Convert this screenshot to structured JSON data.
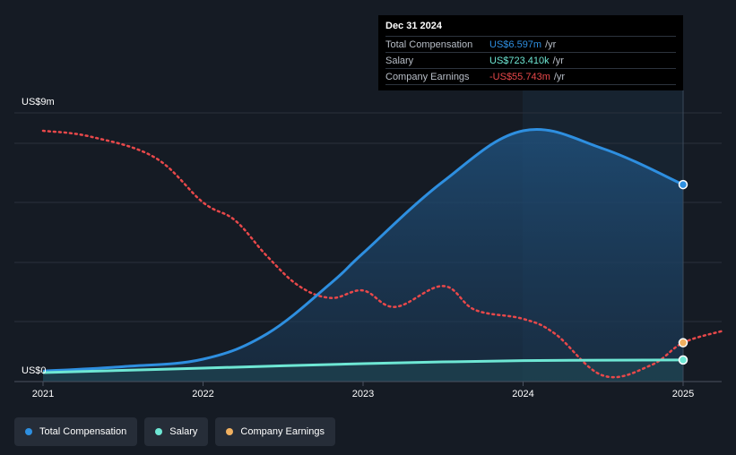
{
  "tooltip": {
    "date": "Dec 31 2024",
    "rows": [
      {
        "label": "Total Compensation",
        "value": "US$6.597m",
        "unit": "/yr",
        "color": "#2e8fe0"
      },
      {
        "label": "Salary",
        "value": "US$723.410k",
        "unit": "/yr",
        "color": "#6ee7d4"
      },
      {
        "label": "Company Earnings",
        "value": "-US$55.743m",
        "unit": "/yr",
        "color": "#e8484a"
      }
    ]
  },
  "legend": [
    {
      "label": "Total Compensation",
      "color": "#2e8fe0"
    },
    {
      "label": "Salary",
      "color": "#6ee7d4"
    },
    {
      "label": "Company Earnings",
      "color": "#f0b060"
    }
  ],
  "chart_data": {
    "type": "line",
    "y_axis_labels": [
      "US$9m",
      "US$0"
    ],
    "ylim": [
      0,
      9
    ],
    "x_ticks": [
      "2021",
      "2022",
      "2023",
      "2024",
      "2025"
    ],
    "grid": true,
    "series": [
      {
        "name": "Total Compensation",
        "color": "#2e8fe0",
        "unit": "US$m",
        "x": [
          2021.0,
          2021.5,
          2022.0,
          2022.4,
          2022.8,
          2023.0,
          2023.5,
          2024.0,
          2024.5,
          2025.0
        ],
        "values": [
          0.35,
          0.5,
          0.75,
          1.6,
          3.3,
          4.3,
          6.7,
          8.4,
          7.8,
          6.597
        ]
      },
      {
        "name": "Salary",
        "color": "#6ee7d4",
        "unit": "US$m",
        "x": [
          2021.0,
          2022.0,
          2023.0,
          2024.0,
          2025.0
        ],
        "values": [
          0.3,
          0.45,
          0.6,
          0.7,
          0.72341
        ]
      },
      {
        "name": "Company Earnings",
        "color": "#e8484a",
        "marker_color": "#f0b060",
        "unit": "scaled",
        "x": [
          2021.0,
          2021.3,
          2021.7,
          2022.0,
          2022.2,
          2022.4,
          2022.6,
          2022.8,
          2023.0,
          2023.2,
          2023.5,
          2023.7,
          2024.0,
          2024.2,
          2024.5,
          2024.8,
          2025.0,
          2025.25
        ],
        "values": [
          8.4,
          8.2,
          7.5,
          6.0,
          5.4,
          4.2,
          3.2,
          2.8,
          3.05,
          2.5,
          3.2,
          2.4,
          2.1,
          1.6,
          0.2,
          0.55,
          1.3,
          1.7
        ]
      }
    ]
  }
}
